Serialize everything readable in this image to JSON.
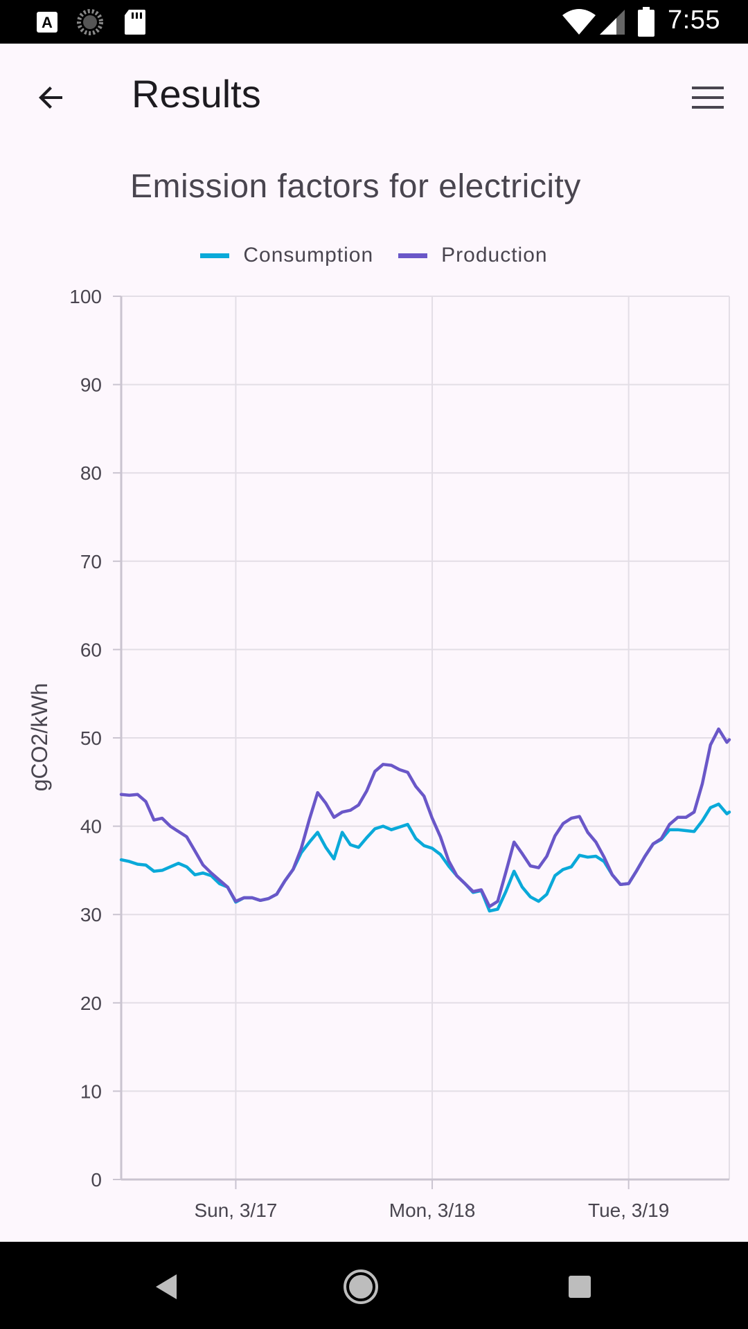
{
  "status_bar": {
    "time": "7:55",
    "left_icons": [
      "accessibility-a-icon",
      "loading-spinner-icon",
      "sd-card-icon"
    ],
    "right_icons": [
      "wifi-icon",
      "cell-signal-icon",
      "battery-icon"
    ]
  },
  "app_bar": {
    "title": "Results",
    "back_icon": "arrow-back-icon",
    "menu_icon": "hamburger-menu-icon"
  },
  "navigation_bar": {
    "icons": [
      "nav-back-icon",
      "nav-home-icon",
      "nav-recents-icon"
    ]
  },
  "chart_data": {
    "type": "line",
    "title": "Emission factors for electricity",
    "ylabel": "gCO2/kWh",
    "xlabel": "",
    "ylim": [
      0,
      100
    ],
    "yticks": [
      0,
      10,
      20,
      30,
      40,
      50,
      60,
      70,
      80,
      90,
      100
    ],
    "grid": true,
    "legend_position": "top-center",
    "x_ticks": [
      {
        "label": "Sun, 3/17",
        "value": 12
      },
      {
        "label": "Mon, 3/18",
        "value": 36
      },
      {
        "label": "Tue, 3/19",
        "value": 60
      }
    ],
    "xlim": [
      -2,
      72.3
    ],
    "x": [
      -2,
      -1,
      0,
      1,
      2,
      3,
      4,
      5,
      6,
      7,
      8,
      9,
      10,
      11,
      12,
      13,
      14,
      15,
      16,
      17,
      18,
      19,
      20,
      21,
      22,
      23,
      24,
      25,
      26,
      27,
      28,
      29,
      30,
      31,
      32,
      33,
      34,
      35,
      36,
      37,
      38,
      39,
      40,
      41,
      42,
      43,
      44,
      45,
      46,
      47,
      48,
      49,
      50,
      51,
      52,
      53,
      54,
      55,
      56,
      57,
      58,
      59,
      60,
      61,
      62,
      63,
      64,
      65,
      66,
      67,
      68,
      69,
      70,
      71,
      72,
      72.3
    ],
    "series": [
      {
        "name": "Consumption",
        "color": "#0aa9d9",
        "values": [
          36.2,
          36.0,
          35.7,
          35.6,
          34.9,
          35.0,
          35.4,
          35.8,
          35.4,
          34.5,
          34.7,
          34.4,
          33.5,
          33.1,
          31.4,
          31.9,
          31.9,
          31.6,
          31.8,
          32.3,
          33.8,
          35.1,
          37.0,
          38.2,
          39.3,
          37.6,
          36.3,
          39.3,
          37.9,
          37.6,
          38.7,
          39.7,
          40.0,
          39.6,
          39.9,
          40.2,
          38.6,
          37.8,
          37.5,
          36.8,
          35.5,
          34.4,
          33.5,
          32.5,
          32.7,
          30.4,
          30.6,
          32.6,
          34.9,
          33.1,
          32.0,
          31.5,
          32.3,
          34.4,
          35.1,
          35.4,
          36.7,
          36.5,
          36.6,
          36.0,
          34.5,
          33.4,
          33.5,
          35.0,
          36.6,
          38.0,
          38.5,
          39.6,
          39.6,
          39.5,
          39.4,
          40.6,
          42.1,
          42.5,
          41.4,
          41.6
        ]
      },
      {
        "name": "Production",
        "color": "#6a57c8",
        "values": [
          43.6,
          43.5,
          43.6,
          42.8,
          40.7,
          40.9,
          40.0,
          39.4,
          38.8,
          37.2,
          35.6,
          34.7,
          33.9,
          33.1,
          31.5,
          31.9,
          31.9,
          31.6,
          31.8,
          32.3,
          33.8,
          35.1,
          37.5,
          40.8,
          43.8,
          42.6,
          41.0,
          41.6,
          41.8,
          42.4,
          44.0,
          46.2,
          47.0,
          46.9,
          46.4,
          46.1,
          44.5,
          43.4,
          40.9,
          38.8,
          36.1,
          34.4,
          33.5,
          32.6,
          32.8,
          30.9,
          31.5,
          34.8,
          38.2,
          36.9,
          35.5,
          35.3,
          36.6,
          38.9,
          40.3,
          40.9,
          41.1,
          39.3,
          38.2,
          36.5,
          34.5,
          33.4,
          33.5,
          35.0,
          36.6,
          38.0,
          38.6,
          40.2,
          41.0,
          41.0,
          41.6,
          44.8,
          49.2,
          51.0,
          49.5,
          49.8
        ]
      }
    ]
  }
}
